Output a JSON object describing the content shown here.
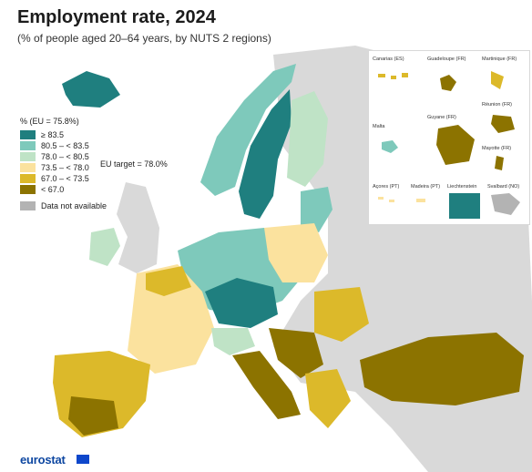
{
  "title": "Employment rate, 2024",
  "subtitle": "(% of people aged 20–64 years, by NUTS 2 regions)",
  "legend": {
    "heading": "% (EU = 75.8%)",
    "classes": [
      {
        "label": "≥ 83.5",
        "color": "#1f7f7f"
      },
      {
        "label": "80.5 – < 83.5",
        "color": "#7ec9bb"
      },
      {
        "label": "78.0 – < 80.5",
        "color": "#bfe3c6"
      },
      {
        "label": "73.5 – < 78.0",
        "color": "#fbe29e"
      },
      {
        "label": "67.0 – < 73.5",
        "color": "#dcb92a"
      },
      {
        "label": "< 67.0",
        "color": "#8c7300"
      }
    ],
    "na_label": "Data not available",
    "na_color": "#b3b3b3",
    "eu_target": "EU target = 78.0%"
  },
  "insets": {
    "canarias": "Canarias (ES)",
    "guadeloupe": "Guadeloupe (FR)",
    "martinique": "Martinique (FR)",
    "guyane": "Guyane (FR)",
    "reunion": "Réunion (FR)",
    "malta": "Malta",
    "mayotte": "Mayotte (FR)",
    "acores": "Açores (PT)",
    "madeira": "Madeira (PT)",
    "liechtenstein": "Liechtenstein",
    "svalbard": "Svalbard (NO)"
  },
  "footer": {
    "brand": "eurostat"
  },
  "colors": {
    "background_land": "#d9d9d9",
    "sea": "#ffffff",
    "border": "#ffffff"
  }
}
